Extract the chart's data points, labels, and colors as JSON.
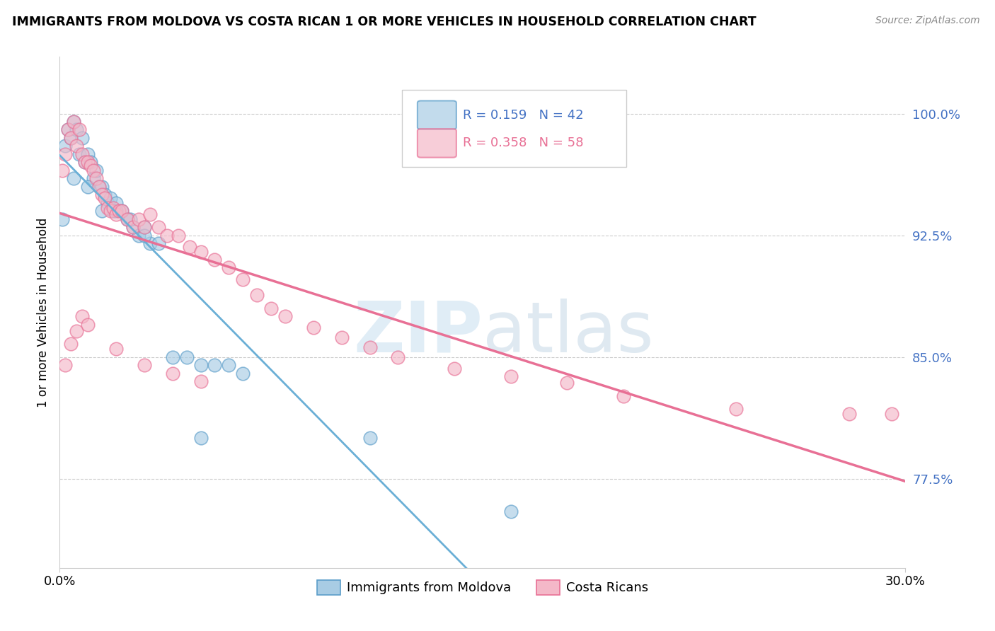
{
  "title": "IMMIGRANTS FROM MOLDOVA VS COSTA RICAN 1 OR MORE VEHICLES IN HOUSEHOLD CORRELATION CHART",
  "source": "Source: ZipAtlas.com",
  "ylabel": "1 or more Vehicles in Household",
  "ytick_labels": [
    "100.0%",
    "92.5%",
    "85.0%",
    "77.5%"
  ],
  "ytick_values": [
    1.0,
    0.925,
    0.85,
    0.775
  ],
  "xlim": [
    0.0,
    0.3
  ],
  "ylim": [
    0.72,
    1.035
  ],
  "legend_label1": "Immigrants from Moldova",
  "legend_label2": "Costa Ricans",
  "r1": 0.159,
  "n1": 42,
  "r2": 0.358,
  "n2": 58,
  "color_blue": "#a8cce4",
  "color_pink": "#f4b8c8",
  "color_blue_edge": "#5b9dc9",
  "color_pink_edge": "#e87095",
  "color_blue_line": "#6aafd6",
  "color_pink_line": "#e87095",
  "blue_x": [
    0.001,
    0.002,
    0.003,
    0.004,
    0.005,
    0.006,
    0.007,
    0.008,
    0.009,
    0.01,
    0.011,
    0.012,
    0.013,
    0.014,
    0.015,
    0.016,
    0.017,
    0.018,
    0.019,
    0.02,
    0.022,
    0.024,
    0.026,
    0.028,
    0.03,
    0.032,
    0.035,
    0.04,
    0.045,
    0.05,
    0.055,
    0.06,
    0.065,
    0.005,
    0.01,
    0.015,
    0.02,
    0.025,
    0.03,
    0.05,
    0.11,
    0.16
  ],
  "blue_y": [
    0.935,
    0.98,
    0.99,
    0.985,
    0.995,
    0.99,
    0.975,
    0.985,
    0.97,
    0.975,
    0.97,
    0.96,
    0.965,
    0.955,
    0.955,
    0.95,
    0.945,
    0.948,
    0.94,
    0.945,
    0.94,
    0.935,
    0.93,
    0.925,
    0.93,
    0.92,
    0.92,
    0.85,
    0.85,
    0.845,
    0.845,
    0.845,
    0.84,
    0.96,
    0.955,
    0.94,
    0.94,
    0.935,
    0.925,
    0.8,
    0.8,
    0.755
  ],
  "pink_x": [
    0.001,
    0.002,
    0.003,
    0.004,
    0.005,
    0.006,
    0.007,
    0.008,
    0.009,
    0.01,
    0.011,
    0.012,
    0.013,
    0.014,
    0.015,
    0.016,
    0.017,
    0.018,
    0.019,
    0.02,
    0.021,
    0.022,
    0.024,
    0.026,
    0.028,
    0.03,
    0.032,
    0.035,
    0.038,
    0.042,
    0.046,
    0.05,
    0.055,
    0.06,
    0.065,
    0.07,
    0.075,
    0.08,
    0.09,
    0.1,
    0.11,
    0.12,
    0.14,
    0.16,
    0.18,
    0.2,
    0.24,
    0.28,
    0.295,
    0.002,
    0.004,
    0.006,
    0.008,
    0.01,
    0.02,
    0.03,
    0.04,
    0.05
  ],
  "pink_y": [
    0.965,
    0.975,
    0.99,
    0.985,
    0.995,
    0.98,
    0.99,
    0.975,
    0.97,
    0.97,
    0.968,
    0.965,
    0.96,
    0.955,
    0.95,
    0.948,
    0.942,
    0.94,
    0.942,
    0.938,
    0.94,
    0.94,
    0.935,
    0.93,
    0.935,
    0.93,
    0.938,
    0.93,
    0.925,
    0.925,
    0.918,
    0.915,
    0.91,
    0.905,
    0.898,
    0.888,
    0.88,
    0.875,
    0.868,
    0.862,
    0.856,
    0.85,
    0.843,
    0.838,
    0.834,
    0.826,
    0.818,
    0.815,
    0.815,
    0.845,
    0.858,
    0.866,
    0.875,
    0.87,
    0.855,
    0.845,
    0.84,
    0.835
  ]
}
